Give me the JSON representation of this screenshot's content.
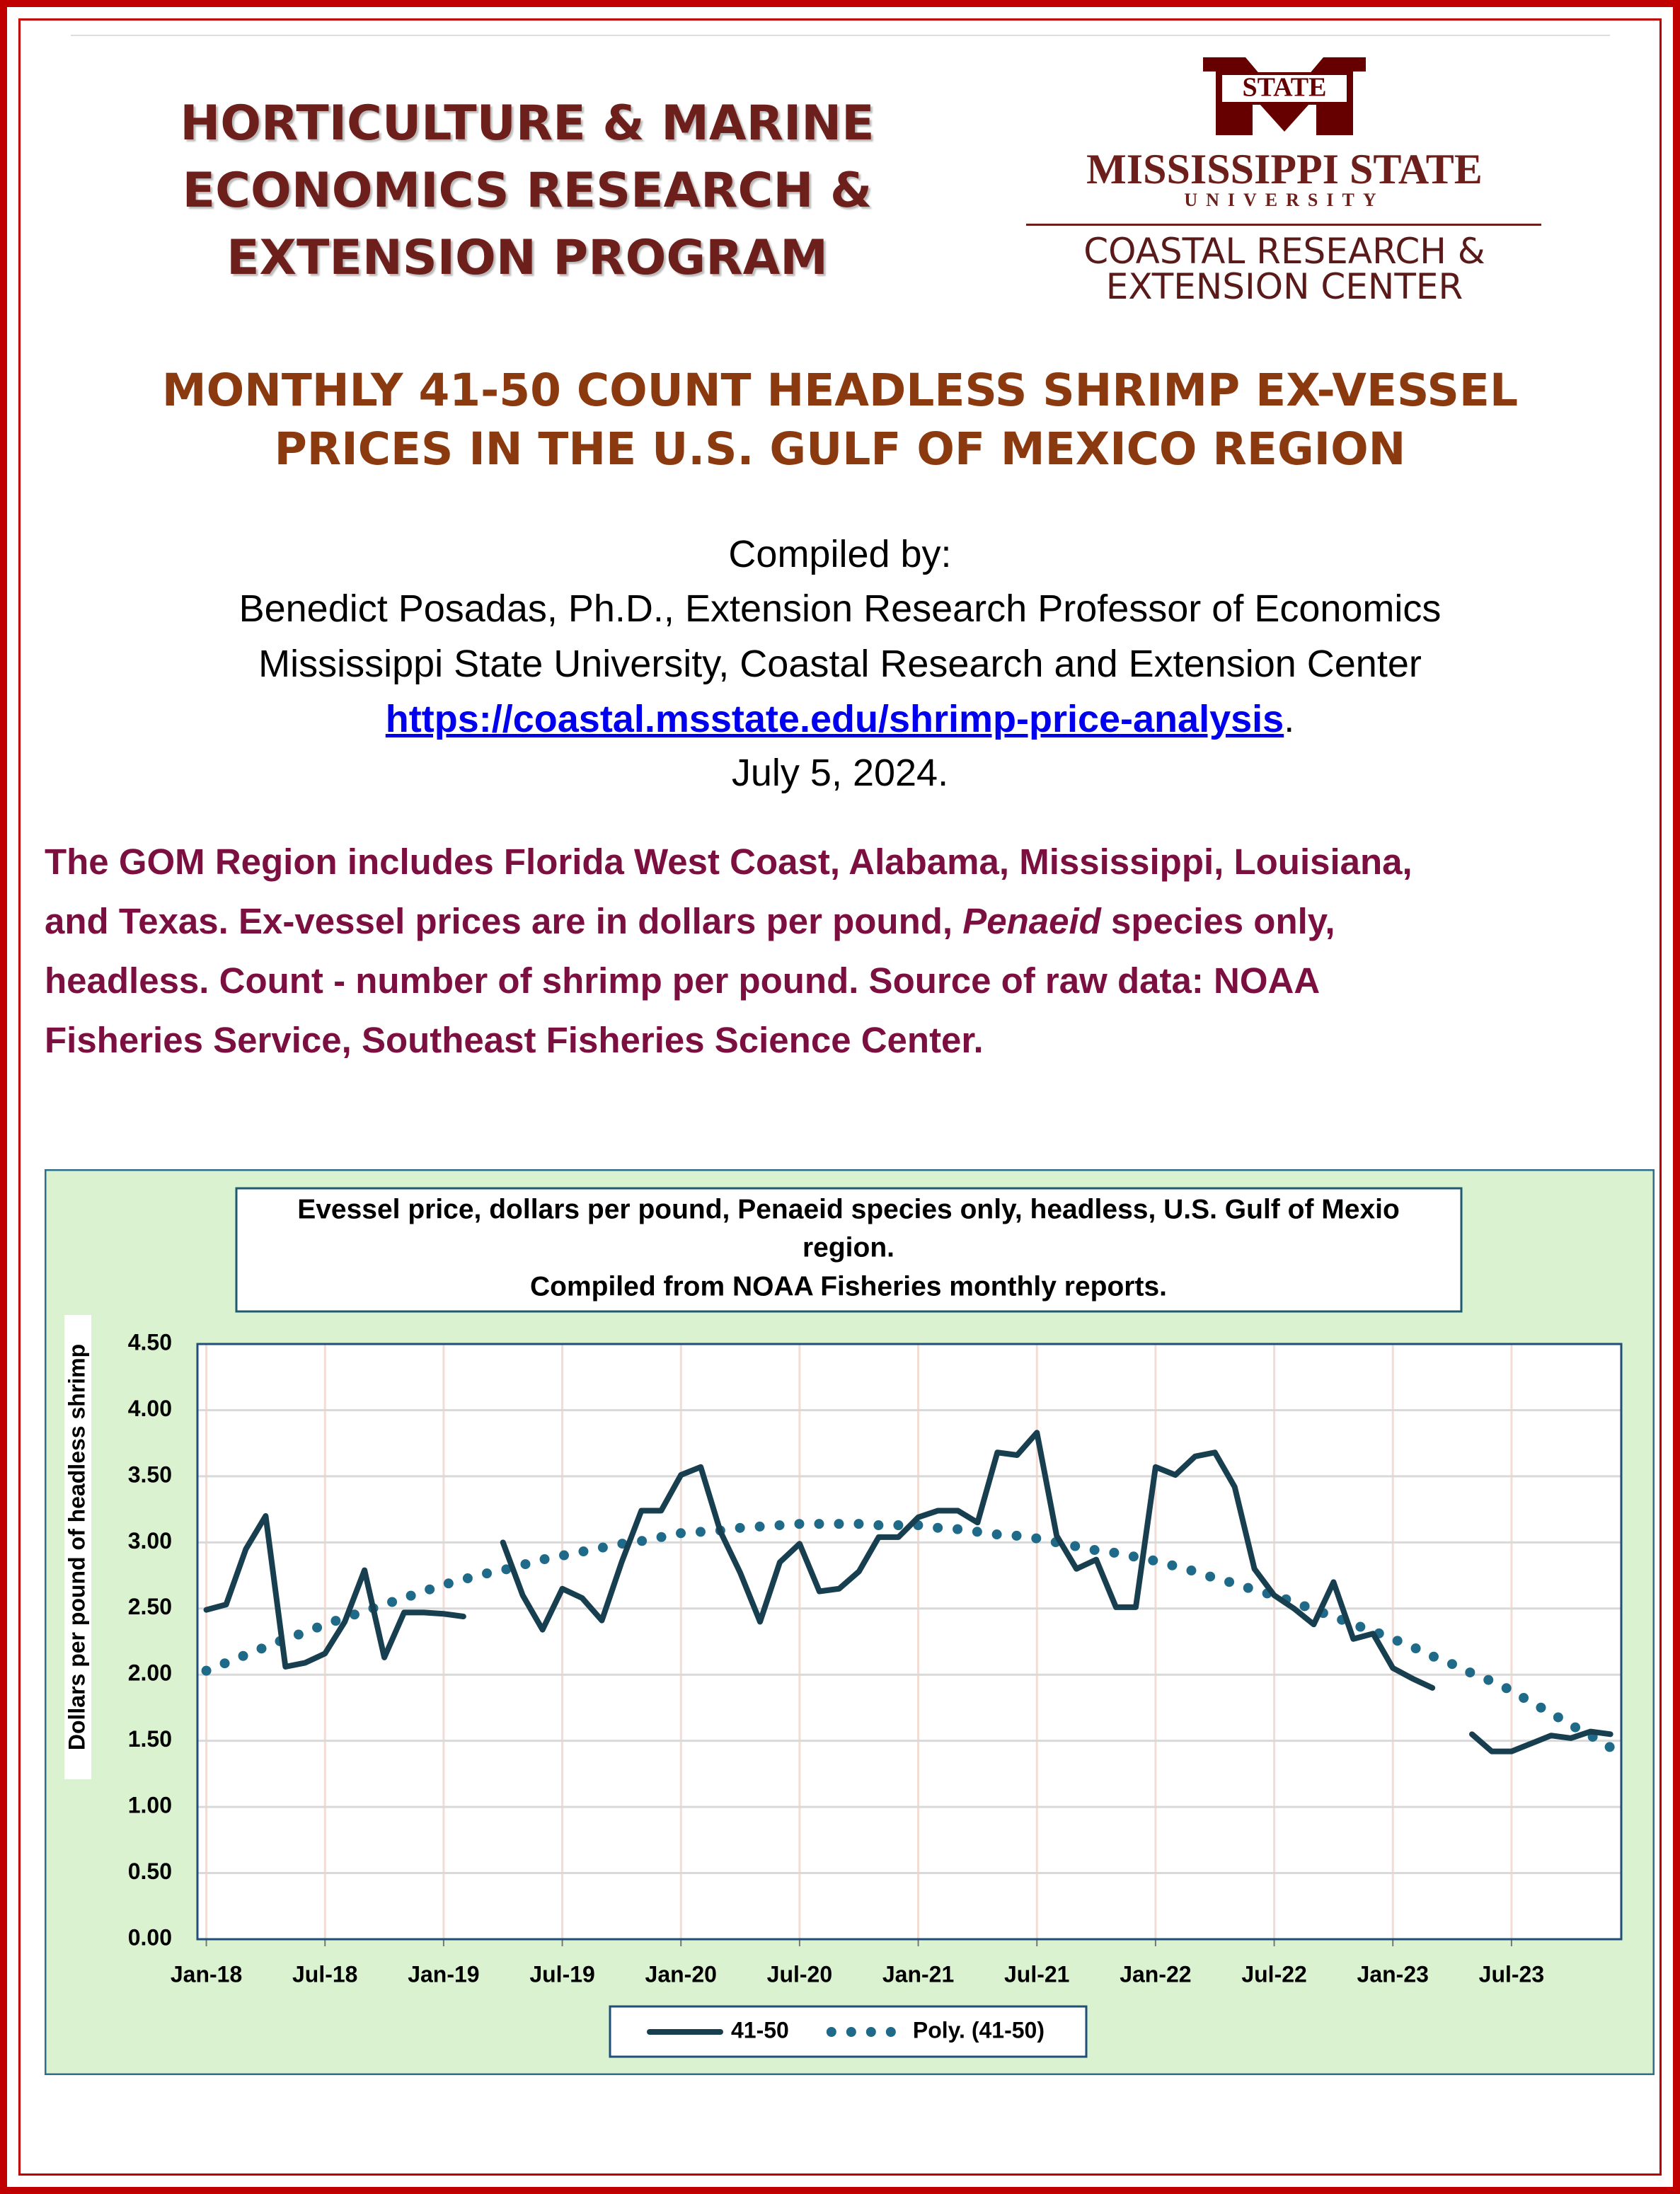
{
  "header": {
    "program_logo": [
      "HORTICULTURE & MARINE",
      "ECONOMICS RESEARCH &",
      "EXTENSION PROGRAM"
    ],
    "university_logo": {
      "banner": "STATE",
      "name": "MISSISSIPPI STATE",
      "sub": "UNIVERSITY",
      "center": [
        "COASTAL RESEARCH &",
        "EXTENSION CENTER"
      ]
    }
  },
  "title": [
    "MONTHLY 41-50 COUNT HEADLESS SHRIMP EX-VESSEL",
    "PRICES IN THE U.S. GULF OF MEXICO REGION"
  ],
  "credits": {
    "lines": [
      "Compiled by:",
      "Benedict Posadas, Ph.D., Extension Research Professor of Economics",
      "Mississippi State University, Coastal Research and Extension Center"
    ],
    "link": "https://coastal.msstate.edu/shrimp-price-analysis",
    "link_suffix": ".",
    "date": "July 5, 2024."
  },
  "description": {
    "line1": "The GOM Region includes Florida West Coast, Alabama, Mississippi, Louisiana,",
    "line2": [
      "and Texas. Ex-vessel prices are in dollars per pound, ",
      "Penaeid",
      " species only,"
    ],
    "line3": "headless. Count - number of shrimp per pound. Source of raw data: NOAA",
    "line4": "Fisheries Service, Southeast Fisheries Science Center."
  },
  "chart_data": {
    "type": "line",
    "title": [
      "Evessel price, dollars per pound, Penaeid species only, headless, U.S. Gulf of Mexio",
      "region.",
      "Compiled from NOAA Fisheries monthly reports."
    ],
    "y_label": "Dollars per pound of headless shrimp",
    "categories": [
      "Jan-18",
      null,
      null,
      null,
      null,
      null,
      "Jul-18",
      null,
      null,
      null,
      null,
      null,
      "Jan-19",
      null,
      null,
      null,
      null,
      null,
      "Jul-19",
      null,
      null,
      null,
      null,
      null,
      "Jan-20",
      null,
      null,
      null,
      null,
      null,
      "Jul-20",
      null,
      null,
      null,
      null,
      null,
      "Jan-21",
      null,
      null,
      null,
      null,
      null,
      "Jul-21",
      null,
      null,
      null,
      null,
      null,
      "Jan-22",
      null,
      null,
      null,
      null,
      null,
      "Jul-22",
      null,
      null,
      null,
      null,
      null,
      "Jan-23",
      null,
      null,
      null,
      null,
      null,
      "Jul-23",
      null,
      null,
      null,
      null,
      null
    ],
    "series": [
      {
        "name": "41-50",
        "color": "#173f50",
        "style": "solid",
        "values": [
          2.49,
          2.53,
          2.95,
          3.2,
          2.06,
          2.09,
          2.16,
          2.4,
          2.79,
          2.13,
          2.47,
          2.47,
          2.46,
          2.44,
          null,
          3.0,
          2.6,
          2.34,
          2.65,
          2.58,
          2.41,
          2.85,
          3.24,
          3.24,
          3.51,
          3.57,
          3.08,
          2.77,
          2.4,
          2.85,
          2.99,
          2.63,
          2.65,
          2.78,
          3.04,
          3.04,
          3.19,
          3.24,
          3.24,
          3.15,
          3.68,
          3.66,
          3.83,
          3.05,
          2.8,
          2.87,
          2.51,
          2.51,
          3.57,
          3.51,
          3.65,
          3.68,
          3.42,
          2.8,
          2.6,
          2.5,
          2.38,
          2.7,
          2.27,
          2.31,
          2.05,
          1.97,
          1.9,
          null,
          1.55,
          1.42,
          1.42,
          1.48,
          1.54,
          1.52,
          1.57,
          1.55
        ]
      },
      {
        "name": "Poly. (41-50)",
        "color": "#1f6a88",
        "style": "dotted",
        "values": [
          2.03,
          2.09,
          2.15,
          2.21,
          2.27,
          2.32,
          2.38,
          2.43,
          2.48,
          2.53,
          2.58,
          2.63,
          2.68,
          2.72,
          2.76,
          2.79,
          2.83,
          2.87,
          2.9,
          2.93,
          2.96,
          2.99,
          3.01,
          3.04,
          3.07,
          3.08,
          3.09,
          3.11,
          3.12,
          3.13,
          3.14,
          3.14,
          3.14,
          3.14,
          3.13,
          3.13,
          3.13,
          3.11,
          3.1,
          3.08,
          3.06,
          3.05,
          3.03,
          3.0,
          2.97,
          2.94,
          2.92,
          2.89,
          2.86,
          2.82,
          2.78,
          2.73,
          2.69,
          2.64,
          2.6,
          2.55,
          2.49,
          2.44,
          2.38,
          2.33,
          2.27,
          2.21,
          2.14,
          2.08,
          2.01,
          1.95,
          1.88,
          1.79,
          1.71,
          1.62,
          1.54,
          1.45
        ]
      }
    ],
    "ylim": [
      0,
      4.5
    ],
    "yticks": [
      {
        "value": 0,
        "label": "0.00"
      },
      {
        "value": 0.5,
        "label": "0.50"
      },
      {
        "value": 1,
        "label": "1.00"
      },
      {
        "value": 1.5,
        "label": "1.50"
      },
      {
        "value": 2,
        "label": "2.00"
      },
      {
        "value": 2.5,
        "label": "2.50"
      },
      {
        "value": 3,
        "label": "3.00"
      },
      {
        "value": 3.5,
        "label": "3.50"
      },
      {
        "value": 4,
        "label": "4.00"
      },
      {
        "value": 4.5,
        "label": "4.50"
      }
    ],
    "grid": true,
    "legend": "bottom"
  }
}
